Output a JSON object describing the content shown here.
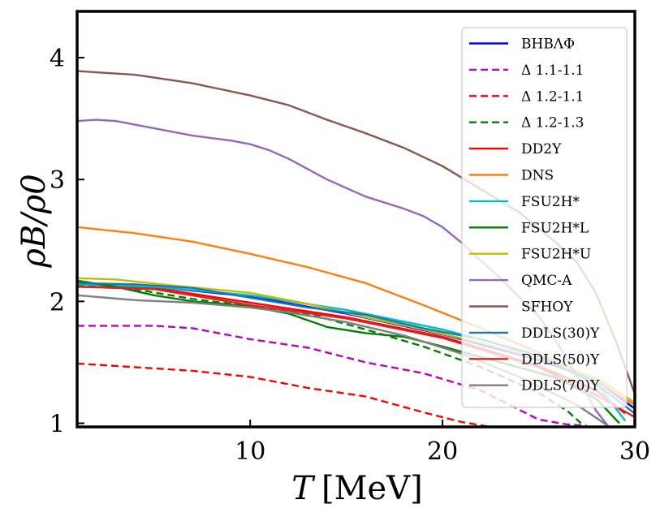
{
  "chart_data": {
    "type": "line",
    "xlabel_var": "T",
    "xlabel_unit": "[MeV]",
    "ylabel_text": "ρB/ρ0",
    "xlim": [
      1,
      30
    ],
    "ylim": [
      0.97,
      4.38
    ],
    "xticks": [
      10,
      20,
      30
    ],
    "yticks": [
      1,
      2,
      3,
      4
    ],
    "grid": false,
    "legend_position": "top-right",
    "series": [
      {
        "name": "BHBΛΦ",
        "color": "#0000ff",
        "dash": "solid",
        "x": [
          1,
          5,
          10,
          15,
          20,
          25,
          28,
          30
        ],
        "y": [
          2.15,
          2.12,
          2.04,
          1.9,
          1.73,
          1.52,
          1.35,
          1.12
        ]
      },
      {
        "name": "Δ 1.1-1.1",
        "color": "#bf00bf",
        "dash": "dashed",
        "x": [
          1,
          3,
          5,
          7,
          10,
          13,
          16,
          19,
          22,
          25,
          26.5,
          27.5
        ],
        "y": [
          1.8,
          1.8,
          1.8,
          1.78,
          1.69,
          1.62,
          1.5,
          1.41,
          1.27,
          1.03,
          0.99,
          0.98
        ]
      },
      {
        "name": "Δ 1.2-1.1",
        "color": "#ff0000",
        "dash": "dashed",
        "x": [
          1,
          4,
          7,
          10,
          13,
          16,
          19,
          21,
          22.5
        ],
        "y": [
          1.49,
          1.46,
          1.43,
          1.38,
          1.29,
          1.22,
          1.09,
          1.01,
          0.97
        ]
      },
      {
        "name": "Δ 1.2-1.3",
        "color": "#008000",
        "dash": "dashed",
        "x": [
          1,
          4,
          7,
          10,
          13,
          16,
          19,
          22,
          25,
          26.5,
          27.2
        ],
        "y": [
          2.13,
          2.1,
          2.02,
          1.96,
          1.9,
          1.77,
          1.63,
          1.46,
          1.25,
          1.1,
          1.0
        ]
      },
      {
        "name": "DD2Y",
        "color": "#ff0000",
        "dash": "solid",
        "x": [
          1,
          5,
          10,
          15,
          20,
          25,
          28,
          29.5
        ],
        "y": [
          2.12,
          2.11,
          1.99,
          1.87,
          1.71,
          1.47,
          1.27,
          1.08
        ]
      },
      {
        "name": "DNS",
        "color": "#ff7f0e",
        "dash": "solid",
        "x": [
          1,
          4,
          7,
          10,
          13,
          16,
          19,
          22,
          25,
          28,
          30
        ],
        "y": [
          2.61,
          2.56,
          2.49,
          2.39,
          2.28,
          2.15,
          1.97,
          1.78,
          1.58,
          1.35,
          1.15
        ]
      },
      {
        "name": "FSU2H*",
        "color": "#00bfbf",
        "dash": "solid",
        "x": [
          1,
          5,
          10,
          15,
          20,
          25,
          28,
          29.5
        ],
        "y": [
          2.14,
          2.12,
          2.05,
          1.93,
          1.77,
          1.56,
          1.33,
          1.02
        ]
      },
      {
        "name": "FSU2H*L",
        "color": "#008000",
        "dash": "solid",
        "x": [
          1,
          3,
          5,
          7,
          10,
          12,
          14,
          16,
          18,
          20,
          23,
          26,
          28,
          29.2
        ],
        "y": [
          2.17,
          2.12,
          2.05,
          2.0,
          1.96,
          1.9,
          1.79,
          1.74,
          1.71,
          1.63,
          1.5,
          1.37,
          1.2,
          1.0
        ]
      },
      {
        "name": "FSU2H*U",
        "color": "#bfbf00",
        "dash": "solid",
        "x": [
          1,
          3,
          6,
          10,
          13,
          16,
          19,
          22,
          25,
          28,
          30
        ],
        "y": [
          2.19,
          2.18,
          2.13,
          2.07,
          1.98,
          1.87,
          1.77,
          1.66,
          1.53,
          1.37,
          1.17
        ]
      },
      {
        "name": "QMC-A",
        "color": "#9467bd",
        "dash": "solid",
        "x": [
          1,
          2,
          3,
          5,
          7,
          9,
          10,
          11,
          12,
          14,
          16,
          18,
          19,
          20,
          21,
          23,
          25,
          26,
          27,
          28,
          28.6
        ],
        "y": [
          3.48,
          3.49,
          3.48,
          3.42,
          3.36,
          3.32,
          3.29,
          3.24,
          3.17,
          3.0,
          2.86,
          2.76,
          2.7,
          2.61,
          2.48,
          2.19,
          1.88,
          1.65,
          1.38,
          1.1,
          0.98
        ]
      },
      {
        "name": "SFHOY",
        "color": "#8c564b",
        "dash": "solid",
        "x": [
          1,
          4,
          7,
          10,
          12,
          14,
          16,
          18,
          20,
          22,
          24,
          26,
          27,
          28,
          29,
          30
        ],
        "y": [
          3.89,
          3.86,
          3.79,
          3.69,
          3.61,
          3.49,
          3.38,
          3.26,
          3.11,
          2.92,
          2.73,
          2.47,
          2.32,
          2.06,
          1.68,
          1.24
        ]
      },
      {
        "name": "DDLS(30)Y",
        "color": "#1f77b4",
        "dash": "solid",
        "x": [
          1,
          4,
          7,
          10,
          13,
          16,
          19,
          22,
          25,
          28,
          30
        ],
        "y": [
          2.15,
          2.14,
          2.11,
          2.03,
          1.95,
          1.89,
          1.78,
          1.69,
          1.55,
          1.32,
          1.08
        ]
      },
      {
        "name": "DDLS(50)Y",
        "color": "#d62728",
        "dash": "solid",
        "x": [
          1,
          5,
          10,
          15,
          20,
          25,
          28,
          30
        ],
        "y": [
          2.12,
          2.1,
          1.97,
          1.86,
          1.7,
          1.46,
          1.23,
          1.05
        ]
      },
      {
        "name": "DDLS(70)Y",
        "color": "#7f7f7f",
        "dash": "solid",
        "x": [
          1,
          4,
          7,
          10,
          12,
          15,
          18,
          21,
          24,
          27,
          28.5
        ],
        "y": [
          2.05,
          2.01,
          1.99,
          1.95,
          1.91,
          1.83,
          1.72,
          1.57,
          1.38,
          1.15,
          0.99
        ]
      }
    ]
  }
}
